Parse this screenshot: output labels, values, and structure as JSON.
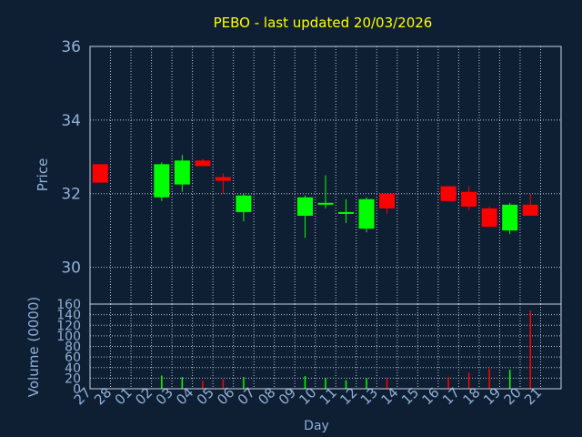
{
  "colors": {
    "background": "#0f1f33",
    "title": "#ffff00",
    "axis_text": "#8fb0d8",
    "grid": "#b8c4d6",
    "frame": "#c8d2e0",
    "up": "#00ff00",
    "down": "#ff0000"
  },
  "chart_data": [
    {
      "type": "candlestick",
      "title": "PEBO - last updated 20/03/2026",
      "ylabel": "Price",
      "ylim": [
        29,
        36
      ],
      "yticks": [
        30,
        32,
        34,
        36
      ],
      "grid": true,
      "x": [
        "27",
        "28",
        "01",
        "02",
        "03",
        "04",
        "05",
        "06",
        "07",
        "08",
        "09",
        "10",
        "11",
        "12",
        "13",
        "14",
        "15",
        "16",
        "17",
        "18",
        "19",
        "20",
        "21"
      ],
      "candles": [
        {
          "day": "27",
          "open": 32.8,
          "high": 32.8,
          "low": 32.3,
          "close": 32.3
        },
        {
          "day": "02",
          "open": 31.9,
          "high": 32.85,
          "low": 31.8,
          "close": 32.8
        },
        {
          "day": "03",
          "open": 32.25,
          "high": 33.05,
          "low": 32.05,
          "close": 32.9
        },
        {
          "day": "04",
          "open": 32.9,
          "high": 32.95,
          "low": 32.75,
          "close": 32.75
        },
        {
          "day": "05",
          "open": 32.45,
          "high": 32.55,
          "low": 32.0,
          "close": 32.35
        },
        {
          "day": "06",
          "open": 31.5,
          "high": 32.0,
          "low": 31.25,
          "close": 31.95
        },
        {
          "day": "09",
          "open": 31.4,
          "high": 31.95,
          "low": 30.8,
          "close": 31.9
        },
        {
          "day": "10",
          "open": 31.7,
          "high": 32.5,
          "low": 31.6,
          "close": 31.75
        },
        {
          "day": "11",
          "open": 31.5,
          "high": 31.85,
          "low": 31.2,
          "close": 31.5
        },
        {
          "day": "12",
          "open": 31.05,
          "high": 31.9,
          "low": 30.95,
          "close": 31.85
        },
        {
          "day": "13",
          "open": 32.0,
          "high": 32.0,
          "low": 31.45,
          "close": 31.6
        },
        {
          "day": "16",
          "open": 32.2,
          "high": 32.2,
          "low": 31.8,
          "close": 31.8
        },
        {
          "day": "17",
          "open": 32.05,
          "high": 32.2,
          "low": 31.55,
          "close": 31.65
        },
        {
          "day": "18",
          "open": 31.6,
          "high": 31.65,
          "low": 31.1,
          "close": 31.1
        },
        {
          "day": "19",
          "open": 31.0,
          "high": 31.75,
          "low": 30.9,
          "close": 31.7
        },
        {
          "day": "20",
          "open": 31.7,
          "high": 32.0,
          "low": 31.4,
          "close": 31.4
        }
      ]
    },
    {
      "type": "bar",
      "ylabel": "Volume (0000)",
      "xlabel": "Day",
      "ylim": [
        0,
        160
      ],
      "yticks": [
        0,
        20,
        40,
        60,
        80,
        100,
        120,
        140,
        160
      ],
      "grid": true,
      "x": [
        "27",
        "28",
        "01",
        "02",
        "03",
        "04",
        "05",
        "06",
        "07",
        "08",
        "09",
        "10",
        "11",
        "12",
        "13",
        "14",
        "15",
        "16",
        "17",
        "18",
        "19",
        "20",
        "21"
      ],
      "bars": [
        {
          "day": "02",
          "value": 25,
          "direction": "up"
        },
        {
          "day": "03",
          "value": 22,
          "direction": "up"
        },
        {
          "day": "04",
          "value": 15,
          "direction": "down"
        },
        {
          "day": "05",
          "value": 18,
          "direction": "down"
        },
        {
          "day": "06",
          "value": 22,
          "direction": "up"
        },
        {
          "day": "09",
          "value": 24,
          "direction": "up"
        },
        {
          "day": "10",
          "value": 20,
          "direction": "up"
        },
        {
          "day": "11",
          "value": 16,
          "direction": "up"
        },
        {
          "day": "12",
          "value": 20,
          "direction": "up"
        },
        {
          "day": "13",
          "value": 20,
          "direction": "down"
        },
        {
          "day": "16",
          "value": 22,
          "direction": "down"
        },
        {
          "day": "17",
          "value": 30,
          "direction": "down"
        },
        {
          "day": "18",
          "value": 38,
          "direction": "down"
        },
        {
          "day": "19",
          "value": 36,
          "direction": "up"
        },
        {
          "day": "20",
          "value": 148,
          "direction": "down"
        }
      ]
    }
  ]
}
